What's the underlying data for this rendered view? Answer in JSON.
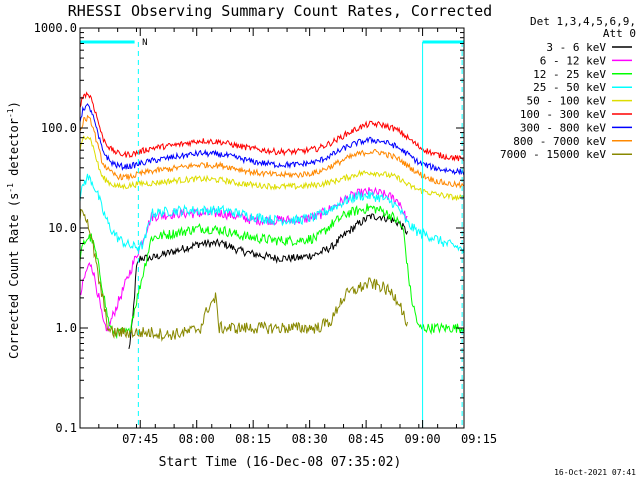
{
  "chart_data": {
    "type": "line",
    "title": "RHESSI Observing Summary Count Rates, Corrected",
    "xlabel": "Start Time (16-Dec-08 07:35:02)",
    "ylabel": "Corrected Count Rate (s",
    "ylabel_sup1": "-1",
    "ylabel_mid": " detector",
    "ylabel_sup2": "-1",
    "ylabel_end": ")",
    "y_scale": "log",
    "ylim": [
      0.1,
      1000
    ],
    "xlim_minutes": [
      -6,
      96
    ],
    "x_ticks": [
      {
        "label": "07:45",
        "value": 10
      },
      {
        "label": "08:00",
        "value": 25
      },
      {
        "label": "08:15",
        "value": 40
      },
      {
        "label": "08:30",
        "value": 55
      },
      {
        "label": "08:45",
        "value": 70
      },
      {
        "label": "09:00",
        "value": 85
      },
      {
        "label": "09:15",
        "value": 100
      }
    ],
    "y_ticks": [
      {
        "label": "1000.0",
        "value": 1000
      },
      {
        "label": "100.0",
        "value": 100
      },
      {
        "label": "10.0",
        "value": 10
      },
      {
        "label": "1.0",
        "value": 1
      },
      {
        "label": "0.1",
        "value": 0.1
      }
    ],
    "legend_header": [
      "Det 1,3,4,5,6,9,",
      "Att 0"
    ],
    "legend_position": "right",
    "flag_label": "N",
    "timestamp": "16-Oct-2021 07:41",
    "grid": false,
    "series": [
      {
        "name": "3 - 6 keV",
        "color": "#000000",
        "points": [
          [
            7,
            0.6
          ],
          [
            8,
            1.2
          ],
          [
            9,
            4
          ],
          [
            10,
            5
          ],
          [
            13,
            5
          ],
          [
            20,
            6
          ],
          [
            26,
            7
          ],
          [
            32,
            7
          ],
          [
            36,
            6
          ],
          [
            40,
            5.5
          ],
          [
            46,
            5
          ],
          [
            52,
            5
          ],
          [
            57,
            5.5
          ],
          [
            61,
            6.5
          ],
          [
            65,
            9
          ],
          [
            68,
            11
          ],
          [
            71,
            13
          ],
          [
            74,
            13
          ],
          [
            77,
            12
          ],
          [
            79,
            11
          ],
          [
            81,
            9
          ]
        ]
      },
      {
        "name": "6 - 12 keV",
        "color": "#ff00ff",
        "points": [
          [
            -6,
            2
          ],
          [
            -5,
            3
          ],
          [
            -4,
            4
          ],
          [
            -3,
            4.5
          ],
          [
            -2,
            3
          ],
          [
            -1,
            2
          ],
          [
            0,
            1.2
          ],
          [
            1,
            0.9
          ],
          [
            13,
            13
          ],
          [
            20,
            14
          ],
          [
            26,
            14
          ],
          [
            32,
            14
          ],
          [
            36,
            13
          ],
          [
            40,
            12
          ],
          [
            46,
            12
          ],
          [
            52,
            12
          ],
          [
            57,
            13
          ],
          [
            61,
            16
          ],
          [
            65,
            20
          ],
          [
            68,
            22
          ],
          [
            71,
            23
          ],
          [
            74,
            22
          ],
          [
            77,
            20
          ],
          [
            79,
            18
          ],
          [
            80,
            14
          ],
          [
            81,
            12
          ]
        ]
      },
      {
        "name": "12 - 25 keV",
        "color": "#00ff00",
        "points": [
          [
            -6,
            5
          ],
          [
            -5,
            7
          ],
          [
            -4,
            8
          ],
          [
            -3,
            8
          ],
          [
            -2,
            6
          ],
          [
            -1,
            4
          ],
          [
            0,
            2.5
          ],
          [
            1,
            1.5
          ],
          [
            2,
            1
          ],
          [
            3,
            0.9
          ],
          [
            5,
            0.9
          ],
          [
            6,
            0.9
          ],
          [
            7,
            0.9
          ],
          [
            13,
            8
          ],
          [
            20,
            9
          ],
          [
            26,
            10
          ],
          [
            32,
            9.5
          ],
          [
            36,
            8.5
          ],
          [
            40,
            8
          ],
          [
            46,
            7.5
          ],
          [
            52,
            7.5
          ],
          [
            57,
            8
          ],
          [
            61,
            11
          ],
          [
            65,
            14
          ],
          [
            68,
            15
          ],
          [
            71,
            16
          ],
          [
            74,
            15
          ],
          [
            77,
            13
          ],
          [
            79,
            11
          ],
          [
            80,
            9
          ],
          [
            81,
            4
          ],
          [
            82,
            2
          ],
          [
            84,
            1
          ],
          [
            96,
            1
          ]
        ]
      },
      {
        "name": "25 - 50 keV",
        "color": "#00ffff",
        "points": [
          [
            -6,
            20
          ],
          [
            -5,
            28
          ],
          [
            -4,
            32
          ],
          [
            -3,
            30
          ],
          [
            -2,
            25
          ],
          [
            -1,
            20
          ],
          [
            0,
            15
          ],
          [
            2,
            10
          ],
          [
            4,
            8
          ],
          [
            6,
            7
          ],
          [
            8,
            6.5
          ],
          [
            10,
            6.5
          ],
          [
            11,
            7
          ],
          [
            13,
            14
          ],
          [
            20,
            15
          ],
          [
            26,
            15
          ],
          [
            32,
            15
          ],
          [
            36,
            14
          ],
          [
            40,
            13
          ],
          [
            46,
            12
          ],
          [
            52,
            12
          ],
          [
            57,
            13
          ],
          [
            61,
            16
          ],
          [
            65,
            19
          ],
          [
            68,
            21
          ],
          [
            71,
            21
          ],
          [
            74,
            20
          ],
          [
            77,
            18
          ],
          [
            79,
            15
          ],
          [
            81,
            11
          ],
          [
            84,
            9
          ],
          [
            88,
            8
          ],
          [
            91,
            7
          ],
          [
            94,
            6.5
          ],
          [
            96,
            6
          ]
        ]
      },
      {
        "name": "50 - 100 keV",
        "color": "#dddd00",
        "points": [
          [
            -6,
            60
          ],
          [
            -5,
            80
          ],
          [
            -4,
            85
          ],
          [
            -3,
            75
          ],
          [
            -2,
            55
          ],
          [
            -1,
            40
          ],
          [
            0,
            32
          ],
          [
            2,
            28
          ],
          [
            4,
            26
          ],
          [
            6,
            26
          ],
          [
            8,
            27
          ],
          [
            10,
            28
          ],
          [
            13,
            28
          ],
          [
            20,
            30
          ],
          [
            26,
            31
          ],
          [
            32,
            30
          ],
          [
            36,
            28
          ],
          [
            40,
            27
          ],
          [
            46,
            26
          ],
          [
            52,
            26
          ],
          [
            57,
            27
          ],
          [
            61,
            29
          ],
          [
            65,
            32
          ],
          [
            68,
            35
          ],
          [
            71,
            36
          ],
          [
            74,
            35
          ],
          [
            77,
            33
          ],
          [
            79,
            31
          ],
          [
            81,
            27
          ],
          [
            84,
            24
          ],
          [
            88,
            22
          ],
          [
            91,
            21
          ],
          [
            94,
            20
          ],
          [
            96,
            20
          ]
        ]
      },
      {
        "name": "100 - 300 keV",
        "color": "#ff0000",
        "points": [
          [
            -6,
            170
          ],
          [
            -5,
            215
          ],
          [
            -4,
            220
          ],
          [
            -3,
            200
          ],
          [
            -2,
            150
          ],
          [
            -1,
            110
          ],
          [
            0,
            80
          ],
          [
            2,
            62
          ],
          [
            4,
            56
          ],
          [
            6,
            54
          ],
          [
            8,
            55
          ],
          [
            10,
            58
          ],
          [
            13,
            63
          ],
          [
            20,
            68
          ],
          [
            26,
            75
          ],
          [
            32,
            72
          ],
          [
            36,
            66
          ],
          [
            40,
            62
          ],
          [
            46,
            58
          ],
          [
            52,
            58
          ],
          [
            57,
            62
          ],
          [
            61,
            72
          ],
          [
            65,
            88
          ],
          [
            68,
            100
          ],
          [
            71,
            110
          ],
          [
            74,
            108
          ],
          [
            77,
            100
          ],
          [
            79,
            92
          ],
          [
            81,
            80
          ],
          [
            84,
            65
          ],
          [
            88,
            55
          ],
          [
            91,
            52
          ],
          [
            94,
            50
          ],
          [
            96,
            48
          ]
        ]
      },
      {
        "name": "300 - 800 keV",
        "color": "#0000ff",
        "points": [
          [
            -6,
            120
          ],
          [
            -5,
            160
          ],
          [
            -4,
            165
          ],
          [
            -3,
            150
          ],
          [
            -2,
            110
          ],
          [
            -1,
            80
          ],
          [
            0,
            60
          ],
          [
            2,
            46
          ],
          [
            4,
            42
          ],
          [
            6,
            41
          ],
          [
            8,
            42
          ],
          [
            10,
            44
          ],
          [
            13,
            47
          ],
          [
            20,
            52
          ],
          [
            26,
            56
          ],
          [
            32,
            54
          ],
          [
            36,
            50
          ],
          [
            40,
            46
          ],
          [
            46,
            43
          ],
          [
            52,
            43
          ],
          [
            57,
            46
          ],
          [
            61,
            54
          ],
          [
            65,
            65
          ],
          [
            68,
            72
          ],
          [
            71,
            76
          ],
          [
            74,
            74
          ],
          [
            77,
            68
          ],
          [
            79,
            62
          ],
          [
            81,
            55
          ],
          [
            84,
            45
          ],
          [
            88,
            40
          ],
          [
            91,
            38
          ],
          [
            94,
            37
          ],
          [
            96,
            36
          ]
        ]
      },
      {
        "name": "800 - 7000 keV",
        "color": "#ff8800",
        "points": [
          [
            -6,
            90
          ],
          [
            -5,
            120
          ],
          [
            -4,
            125
          ],
          [
            -3,
            115
          ],
          [
            -2,
            85
          ],
          [
            -1,
            60
          ],
          [
            0,
            45
          ],
          [
            2,
            36
          ],
          [
            4,
            33
          ],
          [
            6,
            32
          ],
          [
            8,
            33
          ],
          [
            10,
            35
          ],
          [
            13,
            37
          ],
          [
            20,
            40
          ],
          [
            26,
            43
          ],
          [
            32,
            42
          ],
          [
            36,
            39
          ],
          [
            40,
            36
          ],
          [
            46,
            34
          ],
          [
            52,
            34
          ],
          [
            57,
            36
          ],
          [
            61,
            42
          ],
          [
            65,
            50
          ],
          [
            68,
            55
          ],
          [
            71,
            58
          ],
          [
            74,
            57
          ],
          [
            77,
            52
          ],
          [
            79,
            48
          ],
          [
            81,
            42
          ],
          [
            84,
            35
          ],
          [
            88,
            30
          ],
          [
            91,
            28
          ],
          [
            94,
            27
          ],
          [
            96,
            26
          ]
        ]
      },
      {
        "name": "7000 - 15000 keV",
        "color": "#888800",
        "points": [
          [
            -6,
            13
          ],
          [
            -5,
            15
          ],
          [
            -4,
            12
          ],
          [
            -3,
            8
          ],
          [
            -2,
            5
          ],
          [
            -1,
            3
          ],
          [
            0,
            2
          ],
          [
            1,
            1.2
          ],
          [
            2,
            0.9
          ],
          [
            8,
            0.9
          ],
          [
            14,
            0.9
          ],
          [
            17,
            0.85
          ],
          [
            22,
            0.9
          ],
          [
            26,
            1.0
          ],
          [
            28,
            1.6
          ],
          [
            30,
            2.0
          ],
          [
            31,
            1.0
          ],
          [
            36,
            1.0
          ],
          [
            46,
            1.0
          ],
          [
            52,
            1.0
          ],
          [
            57,
            1.0
          ],
          [
            61,
            1.2
          ],
          [
            63,
            1.8
          ],
          [
            65,
            2.2
          ],
          [
            68,
            2.5
          ],
          [
            71,
            2.8
          ],
          [
            74,
            2.6
          ],
          [
            77,
            2.2
          ],
          [
            79,
            1.8
          ],
          [
            81,
            1.0
          ]
        ]
      }
    ]
  }
}
